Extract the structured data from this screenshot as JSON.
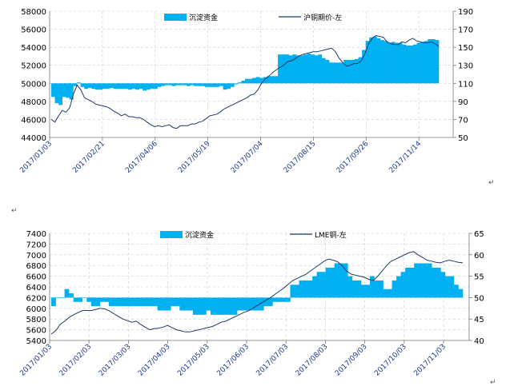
{
  "page_marks": {
    "top_right": "↵",
    "mid_left": "↵",
    "bottom_right": "↵"
  },
  "chart_data": [
    {
      "type": "bar+line",
      "title": "",
      "legend": {
        "placement": "top",
        "bar_label": "沉淀资金",
        "line_label": "沪铜期价-左"
      },
      "colors": {
        "bar": "#00b0f0",
        "line": "#1f3864"
      },
      "left_axis": {
        "min": 44000,
        "max": 58000,
        "step": 2000,
        "labels": [
          "44000",
          "46000",
          "48000",
          "50000",
          "52000",
          "54000",
          "56000",
          "58000"
        ]
      },
      "right_axis": {
        "min": 50,
        "max": 190,
        "step": 20,
        "labels": [
          "50",
          "70",
          "90",
          "110",
          "130",
          "150",
          "170",
          "190"
        ],
        "bar_base": 110
      },
      "x_tick_labels": [
        "2017/01/03",
        "2017/02/21",
        "2017/04/06",
        "2017/05/19",
        "2017/07/04",
        "2017/08/15",
        "2017/09/26",
        "2017/11/14"
      ],
      "series_funds": [
        95,
        88,
        86,
        95,
        94,
        92,
        107,
        111,
        106,
        104,
        105,
        104,
        103,
        103,
        104,
        104,
        105,
        104,
        104,
        104,
        104,
        103,
        104,
        103,
        104,
        102,
        103,
        104,
        104,
        106,
        107,
        108,
        108,
        107,
        108,
        108,
        108,
        107,
        108,
        107,
        107,
        107,
        106,
        106,
        106,
        106,
        107,
        103,
        104,
        106,
        109,
        111,
        113,
        115,
        115,
        116,
        117,
        116,
        117,
        118,
        118,
        118,
        142,
        142,
        142,
        141,
        142,
        141,
        141,
        142,
        143,
        142,
        141,
        142,
        138,
        136,
        133,
        133,
        133,
        133,
        136,
        136,
        136,
        137,
        139,
        147,
        157,
        161,
        162,
        160,
        158,
        157,
        155,
        156,
        155,
        155,
        153,
        152,
        152,
        153,
        155,
        156,
        157,
        159,
        159,
        158
      ],
      "series_price": [
        46000,
        45700,
        46400,
        47000,
        46800,
        47300,
        48800,
        49800,
        49300,
        48400,
        48200,
        48000,
        47700,
        47600,
        47500,
        47400,
        47200,
        46900,
        46700,
        46400,
        46600,
        46300,
        46300,
        46200,
        46200,
        46000,
        45700,
        45400,
        45200,
        45300,
        45200,
        45300,
        45400,
        45100,
        45000,
        45300,
        45300,
        45300,
        45500,
        45500,
        45700,
        45800,
        46100,
        46400,
        46500,
        46600,
        46900,
        47200,
        47400,
        47600,
        47800,
        48000,
        48200,
        48400,
        48700,
        48800,
        49300,
        50000,
        50500,
        50800,
        51200,
        51500,
        51800,
        52000,
        52400,
        52500,
        52700,
        53000,
        53200,
        53300,
        53400,
        53500,
        53500,
        53600,
        53700,
        53800,
        53900,
        53500,
        52800,
        52300,
        51900,
        52000,
        52200,
        52200,
        52500,
        53300,
        54400,
        55000,
        55300,
        55200,
        55100,
        54600,
        54400,
        54300,
        54300,
        54600,
        54500,
        54800,
        55000,
        54700,
        54600,
        54500,
        54500,
        54600,
        54400,
        54100
      ]
    },
    {
      "type": "bar+line",
      "title": "",
      "legend": {
        "placement": "top",
        "bar_label": "沉淀资金",
        "line_label": "LME铜-左"
      },
      "colors": {
        "bar": "#00b0f0",
        "line": "#1f3864"
      },
      "left_axis": {
        "min": 5400,
        "max": 7400,
        "step": 200,
        "labels": [
          "5400",
          "5600",
          "5800",
          "6000",
          "6200",
          "6400",
          "6600",
          "6800",
          "7000",
          "7200",
          "7400"
        ]
      },
      "right_axis": {
        "min": 40,
        "max": 65,
        "step": 5,
        "labels": [
          "40",
          "45",
          "50",
          "55",
          "60",
          "65"
        ],
        "bar_base": 50
      },
      "x_tick_labels": [
        "2017/01/03",
        "2017/02/03",
        "2017/03/03",
        "2017/04/03",
        "2017/05/03",
        "2017/06/03",
        "2017/07/03",
        "2017/08/03",
        "2017/09/03",
        "2017/10/03",
        "2017/11/03"
      ],
      "series_funds": [
        48,
        50,
        50,
        52,
        51,
        49,
        49,
        50,
        49,
        48,
        48,
        49,
        49,
        48,
        48,
        48,
        48,
        48,
        48,
        48,
        48,
        48,
        48,
        48,
        47,
        47,
        47,
        48,
        48,
        47,
        47,
        47,
        46,
        46,
        46,
        47,
        46,
        46,
        46,
        46,
        46,
        46,
        47,
        47,
        47,
        47,
        47,
        47,
        48,
        48,
        49,
        49,
        49,
        49,
        53,
        53,
        54,
        54,
        54,
        55,
        56,
        56,
        57,
        57,
        58,
        58,
        58,
        55,
        54,
        54,
        53,
        53,
        55,
        54,
        54,
        52,
        52,
        54,
        55,
        56,
        57,
        57,
        58,
        58,
        58,
        58,
        57,
        57,
        56,
        55,
        55,
        53,
        52
      ],
      "series_price": [
        5520,
        5580,
        5700,
        5760,
        5830,
        5880,
        5920,
        5960,
        5960,
        5960,
        5980,
        6000,
        5990,
        5950,
        5900,
        5850,
        5800,
        5770,
        5740,
        5760,
        5700,
        5650,
        5600,
        5620,
        5630,
        5650,
        5680,
        5640,
        5600,
        5580,
        5560,
        5560,
        5580,
        5600,
        5620,
        5640,
        5660,
        5700,
        5740,
        5760,
        5800,
        5840,
        5880,
        5920,
        5950,
        6000,
        6050,
        6100,
        6150,
        6200,
        6260,
        6320,
        6380,
        6450,
        6520,
        6560,
        6600,
        6640,
        6700,
        6760,
        6820,
        6880,
        6920,
        6900,
        6870,
        6800,
        6700,
        6640,
        6620,
        6600,
        6580,
        6540,
        6520,
        6600,
        6700,
        6800,
        6880,
        6920,
        6960,
        7000,
        7040,
        7060,
        7000,
        6950,
        6900,
        6880,
        6860,
        6850,
        6880,
        6900,
        6880,
        6860,
        6850
      ]
    }
  ]
}
